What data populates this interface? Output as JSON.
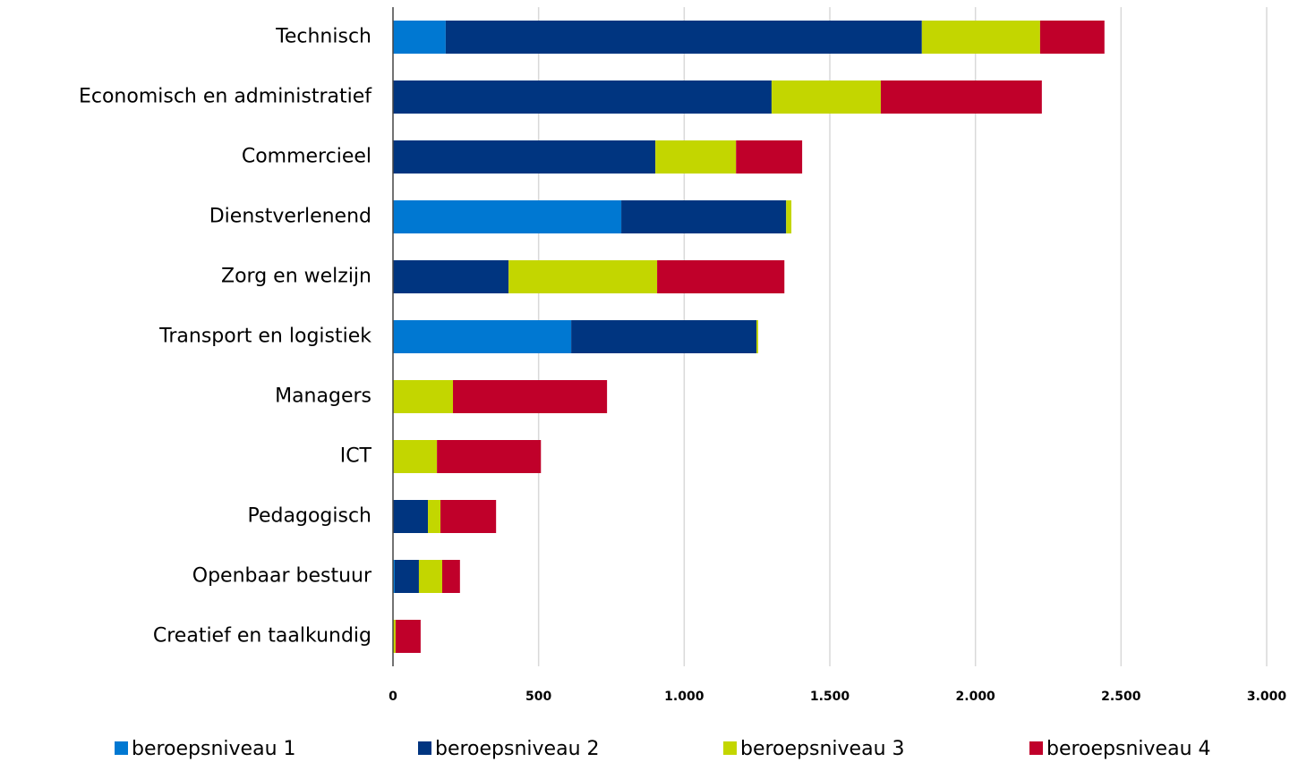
{
  "chart_data": {
    "type": "stacked-barh",
    "categories": [
      "Technisch",
      "Economisch en administratief",
      "Commercieel",
      "Dienstverlenend",
      "Zorg en welzijn",
      "Transport en logistiek",
      "Managers",
      "ICT",
      "Pedagogisch",
      "Openbaar bestuur",
      "Creatief en taalkundig"
    ],
    "series": [
      {
        "name": "beroepsniveau 1",
        "color": "#0078d2",
        "values": [
          181,
          0,
          0,
          784,
          0,
          612,
          0,
          0,
          0,
          6,
          0
        ]
      },
      {
        "name": "beroepsniveau 2",
        "color": "#003580",
        "values": [
          1635,
          1300,
          901,
          566,
          397,
          636,
          0,
          0,
          120,
          83,
          0
        ]
      },
      {
        "name": "beroepsniveau 3",
        "color": "#c3d600",
        "values": [
          406,
          375,
          277,
          18,
          510,
          6,
          206,
          151,
          43,
          80,
          9
        ]
      },
      {
        "name": "beroepsniveau 4",
        "color": "#c0002a",
        "values": [
          221,
          553,
          227,
          0,
          437,
          0,
          529,
          357,
          191,
          61,
          86
        ]
      }
    ],
    "xlim": [
      0,
      3000
    ],
    "xticks": [
      0,
      500,
      {
        "value": 1000,
        "label": "1.000"
      },
      {
        "value": 1500,
        "label": "1.500"
      },
      {
        "value": 2000,
        "label": "2.000"
      },
      {
        "value": 2500,
        "label": "2.500"
      },
      {
        "value": 3000,
        "label": "3.000"
      }
    ],
    "grid": true,
    "legend": "bottom"
  }
}
